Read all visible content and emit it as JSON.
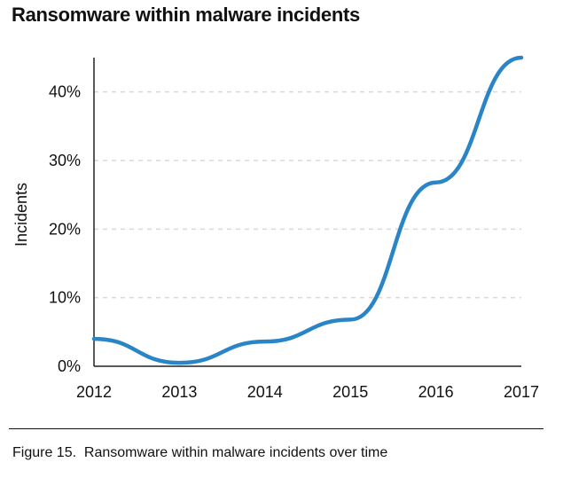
{
  "chart_data": {
    "type": "line",
    "title": "Ransomware within malware incidents",
    "ylabel": "Incidents",
    "xlabel": "",
    "x": [
      "2012",
      "2013",
      "2014",
      "2015",
      "2016",
      "2017"
    ],
    "x_ticks": [
      "2012",
      "2013",
      "2014",
      "2015",
      "2016",
      "2017"
    ],
    "y_ticks": [
      "0%",
      "10%",
      "20%",
      "30%",
      "40%"
    ],
    "ylim": [
      0,
      45
    ],
    "grid": "dashed horizontal",
    "series": [
      {
        "values": [
          4,
          0.5,
          3.6,
          6.8,
          26.8,
          45
        ],
        "color": "#2a85c7"
      }
    ]
  },
  "caption": "Figure 15.  Ransomware within malware incidents over time"
}
